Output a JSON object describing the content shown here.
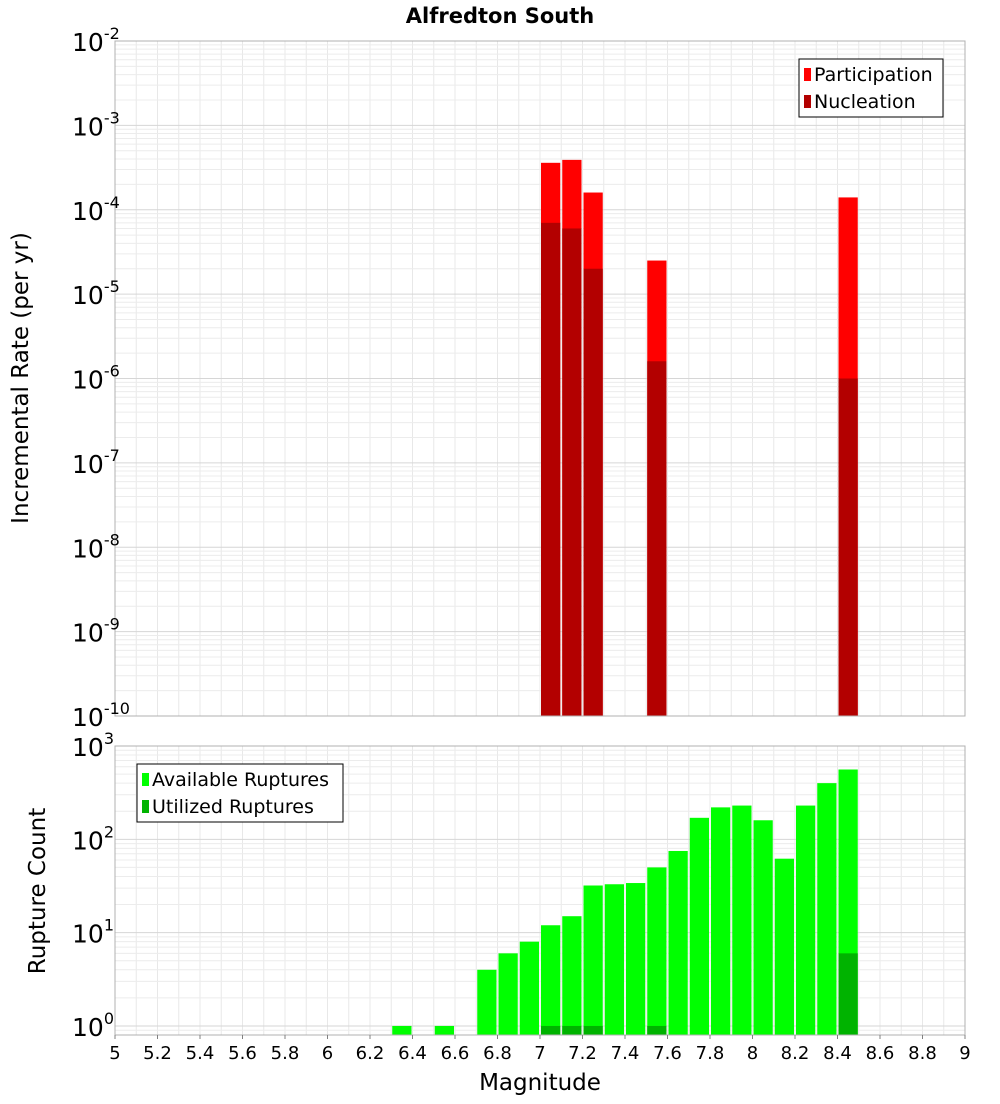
{
  "chart_data": [
    {
      "type": "bar",
      "title": "Alfredton South",
      "ylabel": "Incremental Rate (per yr)",
      "xlabel": "",
      "yscale": "log",
      "ylim": [
        1e-10,
        0.01
      ],
      "xlim": [
        5,
        9
      ],
      "grid": true,
      "legend_position": "top-right",
      "legend": [
        "Participation",
        "Nucleation"
      ],
      "y_tick_labels": [
        {
          "base": "10",
          "exp": "-10",
          "value": 1e-10
        },
        {
          "base": "10",
          "exp": "-9",
          "value": 1e-09
        },
        {
          "base": "10",
          "exp": "-8",
          "value": 1e-08
        },
        {
          "base": "10",
          "exp": "-7",
          "value": 1e-07
        },
        {
          "base": "10",
          "exp": "-6",
          "value": 1e-06
        },
        {
          "base": "10",
          "exp": "-5",
          "value": 1e-05
        },
        {
          "base": "10",
          "exp": "-4",
          "value": 0.0001
        },
        {
          "base": "10",
          "exp": "-3",
          "value": 0.001
        },
        {
          "base": "10",
          "exp": "-2",
          "value": 0.01
        }
      ],
      "series": [
        {
          "name": "Participation",
          "color": "#ff0000",
          "x": [
            7.05,
            7.15,
            7.25,
            7.55,
            8.45
          ],
          "values": [
            0.00036,
            0.00039,
            0.00016,
            2.5e-05,
            0.00014
          ]
        },
        {
          "name": "Nucleation",
          "color": "#b30000",
          "x": [
            7.05,
            7.15,
            7.25,
            7.55,
            8.45
          ],
          "values": [
            7e-05,
            6e-05,
            2e-05,
            1.6e-06,
            1e-06
          ]
        }
      ]
    },
    {
      "type": "bar",
      "title": "",
      "ylabel": "Rupture Count",
      "xlabel": "Magnitude",
      "yscale": "log",
      "ylim": [
        0.8,
        1000
      ],
      "xlim": [
        5,
        9
      ],
      "grid": true,
      "legend_position": "top-left",
      "legend": [
        "Available Ruptures",
        "Utilized Ruptures"
      ],
      "x_tick_labels": [
        "5",
        "5.2",
        "5.4",
        "5.6",
        "5.8",
        "6",
        "6.2",
        "6.4",
        "6.6",
        "6.8",
        "7",
        "7.2",
        "7.4",
        "7.6",
        "7.8",
        "8",
        "8.2",
        "8.4",
        "8.6",
        "8.8",
        "9"
      ],
      "y_tick_labels": [
        {
          "base": "10",
          "exp": "0",
          "value": 1
        },
        {
          "base": "10",
          "exp": "1",
          "value": 10
        },
        {
          "base": "10",
          "exp": "2",
          "value": 100
        },
        {
          "base": "10",
          "exp": "3",
          "value": 1000
        }
      ],
      "series": [
        {
          "name": "Available Ruptures",
          "color": "#00ff00",
          "x": [
            6.35,
            6.55,
            6.75,
            6.85,
            6.95,
            7.05,
            7.15,
            7.25,
            7.35,
            7.45,
            7.55,
            7.65,
            7.75,
            7.85,
            7.95,
            8.05,
            8.15,
            8.25,
            8.35,
            8.45
          ],
          "values": [
            1,
            1,
            4,
            6,
            8,
            12,
            15,
            32,
            33,
            34,
            50,
            75,
            170,
            220,
            230,
            160,
            62,
            230,
            400,
            560
          ]
        },
        {
          "name": "Utilized Ruptures",
          "color": "#00b300",
          "x": [
            7.05,
            7.15,
            7.25,
            7.55,
            8.45
          ],
          "values": [
            1,
            1,
            1,
            1,
            6
          ]
        }
      ]
    }
  ]
}
